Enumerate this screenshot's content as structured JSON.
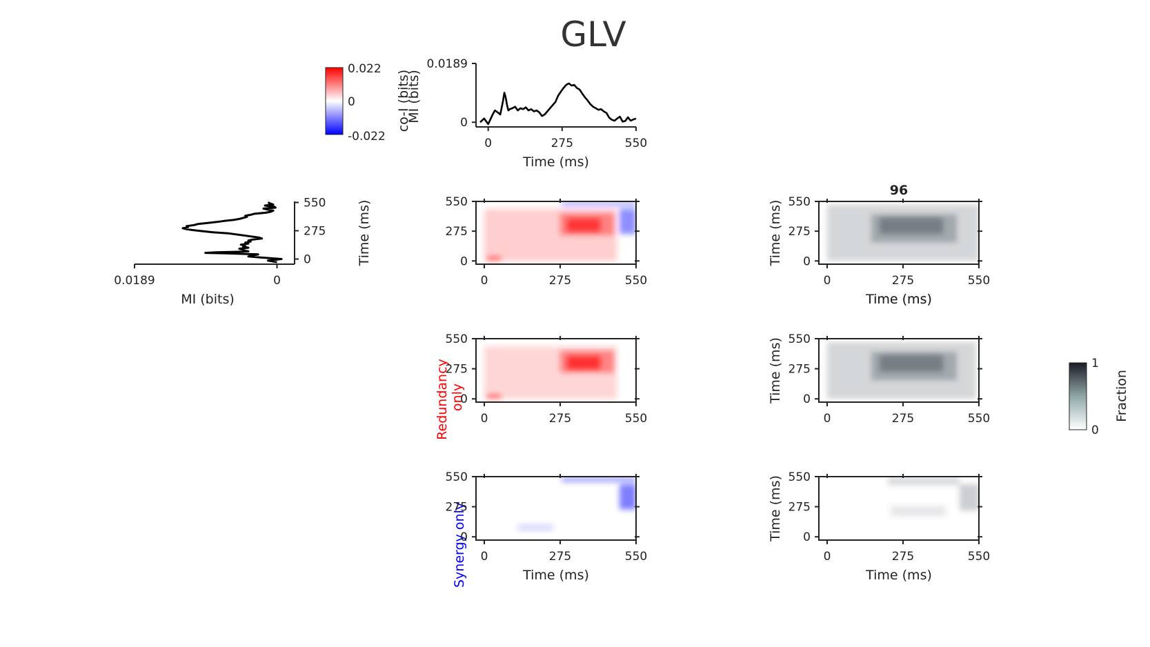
{
  "title": "GLV",
  "colorbar": {
    "label": "co-I (bits)",
    "max": 0.022,
    "mid": 0,
    "min": -0.022,
    "tick_labels": [
      "0.022",
      "0",
      "-0.022"
    ],
    "colors": {
      "high": "#ff0000",
      "mid": "#ffffff",
      "low": "#0000ff"
    }
  },
  "fraction_colorbar": {
    "label": "Fraction",
    "tick_labels": [
      "1",
      "0"
    ],
    "colors": {
      "high": "#1c1c26",
      "low": "#ffffff"
    }
  },
  "panel_labels": {
    "redundancy": "Redundancy\nonly",
    "redundancy_color": "#ff0000",
    "synergy": "Synergy only",
    "synergy_color": "#0000ff"
  },
  "chart_data": [
    {
      "id": "mi-top",
      "type": "line",
      "xlabel": "Time (ms)",
      "ylabel": "MI (bits)",
      "xlim": [
        -30,
        550
      ],
      "ylim": [
        -0.0015,
        0.0189
      ],
      "x_ticks": [
        "0",
        "275",
        "550"
      ],
      "y_ticks": [
        "0.0189",
        "0"
      ],
      "x": [
        -30,
        -15,
        0,
        15,
        25,
        35,
        45,
        55,
        60,
        65,
        70,
        75,
        80,
        90,
        100,
        110,
        120,
        130,
        140,
        150,
        160,
        170,
        180,
        190,
        200,
        210,
        220,
        230,
        240,
        250,
        260,
        270,
        280,
        290,
        300,
        310,
        320,
        330,
        340,
        350,
        360,
        370,
        380,
        390,
        400,
        410,
        420,
        430,
        440,
        450,
        460,
        470,
        480,
        490,
        500,
        510,
        520,
        530,
        540,
        550
      ],
      "values": [
        0.0,
        0.0012,
        -0.0006,
        0.0022,
        0.0038,
        0.0032,
        0.0025,
        0.0068,
        0.0095,
        0.008,
        0.0055,
        0.0038,
        0.0042,
        0.0045,
        0.005,
        0.0038,
        0.0045,
        0.0042,
        0.0048,
        0.0038,
        0.0042,
        0.0035,
        0.0038,
        0.0032,
        0.002,
        0.0025,
        0.0035,
        0.0045,
        0.0055,
        0.0065,
        0.0085,
        0.0098,
        0.011,
        0.012,
        0.0125,
        0.0118,
        0.012,
        0.011,
        0.0105,
        0.0092,
        0.008,
        0.007,
        0.0058,
        0.005,
        0.0045,
        0.004,
        0.0042,
        0.0035,
        0.003,
        0.0015,
        0.0008,
        0.0005,
        0.0012,
        0.0018,
        0.0002,
        0.0004,
        0.0016,
        0.0005,
        0.0009,
        0.0012
      ]
    },
    {
      "id": "mi-left",
      "type": "line",
      "xlabel": "MI (bits)",
      "ylabel": "Time (ms)",
      "xlim": [
        -0.0005,
        0.0189
      ],
      "ylim": [
        -50,
        560
      ],
      "x_ticks": [
        "0.0189",
        "0"
      ],
      "y_ticks": [
        "550",
        "275",
        "0"
      ],
      "y": [
        -30,
        -15,
        0,
        15,
        25,
        35,
        45,
        55,
        60,
        65,
        70,
        75,
        80,
        90,
        100,
        110,
        120,
        130,
        140,
        150,
        160,
        170,
        180,
        190,
        200,
        210,
        220,
        230,
        240,
        250,
        260,
        270,
        280,
        290,
        300,
        310,
        320,
        330,
        340,
        350,
        360,
        370,
        380,
        390,
        400,
        410,
        420,
        430,
        440,
        450,
        460,
        470,
        480,
        490,
        500,
        510,
        520,
        530,
        540,
        550
      ],
      "values": [
        0.0,
        0.0012,
        -0.0006,
        0.0022,
        0.0038,
        0.0032,
        0.0025,
        0.0068,
        0.0095,
        0.008,
        0.0055,
        0.0038,
        0.0042,
        0.0045,
        0.005,
        0.0038,
        0.0045,
        0.0042,
        0.0048,
        0.0038,
        0.0042,
        0.0035,
        0.0038,
        0.0032,
        0.002,
        0.0025,
        0.0035,
        0.0045,
        0.0055,
        0.0065,
        0.0085,
        0.0098,
        0.011,
        0.012,
        0.0125,
        0.0118,
        0.012,
        0.011,
        0.0105,
        0.0092,
        0.008,
        0.007,
        0.0058,
        0.005,
        0.0045,
        0.004,
        0.0042,
        0.0035,
        0.003,
        0.0015,
        0.0008,
        0.0005,
        0.0012,
        0.0018,
        0.0002,
        0.0004,
        0.0016,
        0.0005,
        0.0009,
        0.0012
      ]
    },
    {
      "id": "coi-full",
      "type": "heatmap",
      "xlim": [
        -30,
        550
      ],
      "ylim": [
        -30,
        550
      ],
      "x_ticks": [
        "0",
        "275",
        "550"
      ],
      "y_ticks": [
        "550",
        "275",
        "0"
      ],
      "blobs": [
        {
          "x": [
            0,
            480
          ],
          "y": [
            0,
            480
          ],
          "value": 0.0035
        },
        {
          "x": [
            275,
            470
          ],
          "y": [
            240,
            440
          ],
          "value": 0.007
        },
        {
          "x": [
            300,
            420
          ],
          "y": [
            270,
            390
          ],
          "value": 0.012
        },
        {
          "x": [
            10,
            60
          ],
          "y": [
            0,
            40
          ],
          "value": 0.009
        },
        {
          "x": [
            490,
            550
          ],
          "y": [
            250,
            480
          ],
          "value": -0.008
        },
        {
          "x": [
            280,
            550
          ],
          "y": [
            500,
            550
          ],
          "value": -0.005
        }
      ]
    },
    {
      "id": "frac-full",
      "type": "heatmap",
      "title": "96",
      "xlabel": "Time (ms)",
      "ylabel": "Time (ms)",
      "xlim": [
        -30,
        550
      ],
      "ylim": [
        -30,
        550
      ],
      "x_ticks": [
        "0",
        "275",
        "550"
      ],
      "y_ticks": [
        "550",
        "275",
        "0"
      ],
      "blobs": [
        {
          "x": [
            0,
            550
          ],
          "y": [
            0,
            520
          ],
          "value": 0.3
        },
        {
          "x": [
            160,
            470
          ],
          "y": [
            170,
            430
          ],
          "value": 0.45
        },
        {
          "x": [
            190,
            420
          ],
          "y": [
            250,
            400
          ],
          "value": 0.6
        }
      ]
    },
    {
      "id": "coi-red",
      "type": "heatmap",
      "xlim": [
        -30,
        550
      ],
      "ylim": [
        -30,
        550
      ],
      "x_ticks": [
        "0",
        "275",
        "550"
      ],
      "y_ticks": [
        "550",
        "275",
        "0"
      ],
      "blobs": [
        {
          "x": [
            0,
            480
          ],
          "y": [
            0,
            480
          ],
          "value": 0.003
        },
        {
          "x": [
            275,
            470
          ],
          "y": [
            240,
            440
          ],
          "value": 0.007
        },
        {
          "x": [
            300,
            420
          ],
          "y": [
            270,
            390
          ],
          "value": 0.013
        },
        {
          "x": [
            10,
            60
          ],
          "y": [
            0,
            40
          ],
          "value": 0.009
        }
      ]
    },
    {
      "id": "frac-red",
      "type": "heatmap",
      "ylabel": "Time (ms)",
      "xlim": [
        -30,
        550
      ],
      "ylim": [
        -30,
        550
      ],
      "x_ticks": [
        "0",
        "275",
        "550"
      ],
      "y_ticks": [
        "550",
        "275",
        "0"
      ],
      "blobs": [
        {
          "x": [
            0,
            540
          ],
          "y": [
            0,
            520
          ],
          "value": 0.3
        },
        {
          "x": [
            160,
            470
          ],
          "y": [
            170,
            430
          ],
          "value": 0.45
        },
        {
          "x": [
            190,
            420
          ],
          "y": [
            250,
            400
          ],
          "value": 0.6
        }
      ]
    },
    {
      "id": "coi-syn",
      "type": "heatmap",
      "xlabel": "Time (ms)",
      "xlim": [
        -30,
        550
      ],
      "ylim": [
        -30,
        550
      ],
      "x_ticks": [
        "0",
        "275",
        "550"
      ],
      "y_ticks": [
        "550",
        "275",
        "0"
      ],
      "blobs": [
        {
          "x": [
            490,
            550
          ],
          "y": [
            250,
            480
          ],
          "value": -0.009
        },
        {
          "x": [
            280,
            550
          ],
          "y": [
            500,
            550
          ],
          "value": -0.006
        },
        {
          "x": [
            120,
            250
          ],
          "y": [
            60,
            110
          ],
          "value": -0.003
        }
      ]
    },
    {
      "id": "frac-syn",
      "type": "heatmap",
      "xlabel": "Time (ms)",
      "ylabel": "Time (ms)",
      "xlim": [
        -30,
        550
      ],
      "ylim": [
        -30,
        550
      ],
      "x_ticks": [
        "0",
        "275",
        "550"
      ],
      "y_ticks": [
        "550",
        "275",
        "0"
      ],
      "blobs": [
        {
          "x": [
            480,
            550
          ],
          "y": [
            240,
            480
          ],
          "value": 0.35
        },
        {
          "x": [
            220,
            480
          ],
          "y": [
            470,
            550
          ],
          "value": 0.25
        },
        {
          "x": [
            230,
            430
          ],
          "y": [
            190,
            280
          ],
          "value": 0.18
        }
      ]
    }
  ]
}
